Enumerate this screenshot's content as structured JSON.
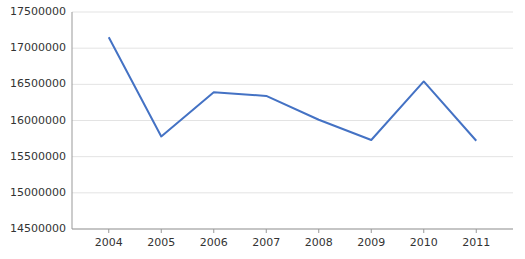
{
  "chart_data": {
    "type": "line",
    "x": [
      2004,
      2005,
      2006,
      2007,
      2008,
      2009,
      2010,
      2011
    ],
    "values": [
      17150000,
      15780000,
      16390000,
      16340000,
      16010000,
      15730000,
      16540000,
      15720000
    ],
    "color": "#4472C4",
    "xlim": [
      2003.3,
      2011.7
    ],
    "ylim": [
      14500000,
      17500000
    ],
    "xticks": [
      2004,
      2005,
      2006,
      2007,
      2008,
      2009,
      2010,
      2011
    ],
    "yticks": [
      14500000,
      15000000,
      15500000,
      16000000,
      16500000,
      17000000,
      17500000
    ],
    "grid": true
  }
}
